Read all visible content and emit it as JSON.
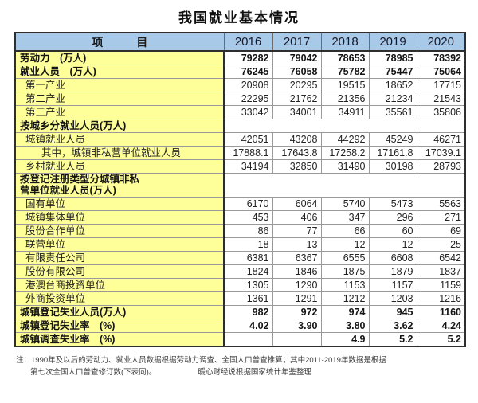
{
  "title": "我国就业基本情况",
  "table": {
    "header": {
      "item_label": "项　　　目",
      "years": [
        "2016",
        "2017",
        "2018",
        "2019",
        "2020"
      ]
    },
    "rows": [
      {
        "label": "劳动力　(万人)",
        "bold": true,
        "indent": 0,
        "values": [
          "79282",
          "79042",
          "78653",
          "78985",
          "78392"
        ]
      },
      {
        "label": "就业人员　(万人)",
        "bold": true,
        "indent": 0,
        "values": [
          "76245",
          "76058",
          "75782",
          "75447",
          "75064"
        ]
      },
      {
        "label": "第一产业",
        "bold": false,
        "indent": 1,
        "values": [
          "20908",
          "20295",
          "19515",
          "18652",
          "17715"
        ]
      },
      {
        "label": "第二产业",
        "bold": false,
        "indent": 1,
        "values": [
          "22295",
          "21762",
          "21356",
          "21234",
          "21543"
        ]
      },
      {
        "label": "第三产业",
        "bold": false,
        "indent": 1,
        "values": [
          "33042",
          "34001",
          "34911",
          "35561",
          "35806"
        ]
      },
      {
        "label": "按城乡分就业人员(万人)",
        "bold": true,
        "indent": 0,
        "section": true
      },
      {
        "label": "城镇就业人员",
        "bold": false,
        "indent": 1,
        "values": [
          "42051",
          "43208",
          "44292",
          "45249",
          "46271"
        ]
      },
      {
        "label": "其中，城镇非私营单位就业人员",
        "bold": false,
        "indent": 2,
        "values": [
          "17888.1",
          "17643.8",
          "17258.2",
          "17161.8",
          "17039.1"
        ]
      },
      {
        "label": "乡村就业人员",
        "bold": false,
        "indent": 1,
        "values": [
          "34194",
          "32850",
          "31490",
          "30198",
          "28793"
        ]
      },
      {
        "label": "按登记注册类型分城镇非私\n营单位就业人员(万人)",
        "bold": true,
        "indent": 0,
        "section": true
      },
      {
        "label": "国有单位",
        "bold": false,
        "indent": 1,
        "values": [
          "6170",
          "6064",
          "5740",
          "5473",
          "5563"
        ]
      },
      {
        "label": "城镇集体单位",
        "bold": false,
        "indent": 1,
        "values": [
          "453",
          "406",
          "347",
          "296",
          "271"
        ]
      },
      {
        "label": "股份合作单位",
        "bold": false,
        "indent": 1,
        "values": [
          "86",
          "77",
          "66",
          "60",
          "69"
        ]
      },
      {
        "label": "联营单位",
        "bold": false,
        "indent": 1,
        "values": [
          "18",
          "13",
          "12",
          "12",
          "25"
        ]
      },
      {
        "label": "有限责任公司",
        "bold": false,
        "indent": 1,
        "values": [
          "6381",
          "6367",
          "6555",
          "6608",
          "6542"
        ]
      },
      {
        "label": "股份有限公司",
        "bold": false,
        "indent": 1,
        "values": [
          "1824",
          "1846",
          "1875",
          "1879",
          "1837"
        ]
      },
      {
        "label": "港澳台商投资单位",
        "bold": false,
        "indent": 1,
        "values": [
          "1305",
          "1290",
          "1153",
          "1157",
          "1159"
        ]
      },
      {
        "label": "外商投资单位",
        "bold": false,
        "indent": 1,
        "values": [
          "1361",
          "1291",
          "1212",
          "1203",
          "1216"
        ]
      },
      {
        "label": "城镇登记失业人员(万人)",
        "bold": true,
        "indent": 0,
        "values": [
          "982",
          "972",
          "974",
          "945",
          "1160"
        ]
      },
      {
        "label": "城镇登记失业率　(%)",
        "bold": true,
        "indent": 0,
        "values": [
          "4.02",
          "3.90",
          "3.80",
          "3.62",
          "4.24"
        ]
      },
      {
        "label": "城镇调查失业率　(%)",
        "bold": true,
        "indent": 0,
        "values": [
          "",
          "",
          "4.9",
          "5.2",
          "5.2"
        ]
      }
    ]
  },
  "footnote": {
    "line1": "注：1990年及以后的劳动力、就业人员数据根据劳动力调查、全国人口普查推算；其中2011-2019年数据是根据",
    "line2": "第七次全国人口普查修订数(下表同)。",
    "credit": "暖心财经说根据国家统计年鉴整理"
  },
  "colors": {
    "header_bg": "#A8CAE8",
    "label_bg": "#FFFF99",
    "border_outer": "#2e2e2e",
    "border_inner": "#9a9a9a"
  }
}
